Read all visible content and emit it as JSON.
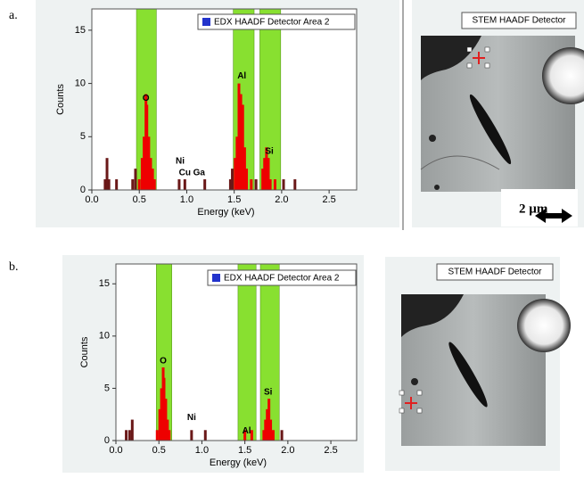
{
  "chart_data": [
    {
      "type": "bar",
      "panel_label": "a.",
      "xlabel": "Energy (keV)",
      "ylabel": "Counts",
      "xlim": [
        0,
        2.79
      ],
      "ylim": [
        0,
        17
      ],
      "xticks": [
        {
          "value": 0,
          "label": "0.0"
        },
        0.5,
        {
          "value": 1,
          "label": "1.0"
        },
        1.5,
        {
          "value": 2,
          "label": "2.0"
        },
        2.5
      ],
      "yticks": [
        0,
        5,
        10,
        15
      ],
      "bands": [
        [
          0.47,
          0.68
        ],
        [
          1.49,
          1.71
        ],
        [
          1.77,
          1.99
        ]
      ],
      "band_color": "#88e030",
      "bar_colors": {
        "in_band": "#ee0000",
        "out_band": "#6a1818"
      },
      "series": [
        {
          "name": "EDX HAADF Detector Area 2",
          "color": "#2233cc",
          "x": [
            0.14,
            0.16,
            0.18,
            0.26,
            0.43,
            0.46,
            0.5,
            0.53,
            0.55,
            0.57,
            0.58,
            0.6,
            0.62,
            0.64,
            0.66,
            0.92,
            0.98,
            1.19,
            1.46,
            1.48,
            1.51,
            1.53,
            1.55,
            1.57,
            1.59,
            1.61,
            1.63,
            1.68,
            1.73,
            1.8,
            1.82,
            1.84,
            1.86,
            1.88,
            1.93,
            2.02,
            2.14
          ],
          "values": [
            1,
            3,
            1,
            1,
            1,
            2,
            1,
            3,
            5,
            9,
            8,
            5,
            3,
            2,
            1,
            1,
            1,
            1,
            1,
            2,
            3,
            5,
            10,
            9,
            8,
            4,
            2,
            1,
            1,
            2,
            3,
            4,
            3,
            1,
            1,
            1,
            1
          ]
        }
      ],
      "annotations": [
        {
          "text": "O",
          "x": 0.57,
          "y": 8.6
        },
        {
          "text": "Al",
          "x": 1.58,
          "y": 10.7
        },
        {
          "text": "Ni",
          "x": 0.93,
          "y": 2.7
        },
        {
          "text": "Cu",
          "x": 0.98,
          "y": 1.6
        },
        {
          "text": "Ga",
          "x": 1.13,
          "y": 1.6
        },
        {
          "text": "Si",
          "x": 1.87,
          "y": 3.6
        }
      ]
    },
    {
      "type": "bar",
      "panel_label": "b.",
      "xlabel": "Energy (keV)",
      "ylabel": "Counts",
      "xlim": [
        0,
        2.8
      ],
      "ylim": [
        0,
        16.9
      ],
      "xticks": [
        {
          "value": 0,
          "label": "0.0"
        },
        0.5,
        {
          "value": 1,
          "label": "1.0"
        },
        1.5,
        {
          "value": 2,
          "label": "2.0"
        },
        2.5
      ],
      "yticks": [
        0,
        5,
        10,
        15
      ],
      "bands": [
        [
          0.47,
          0.65
        ],
        [
          1.42,
          1.63
        ],
        [
          1.68,
          1.9
        ]
      ],
      "band_color": "#88e030",
      "bar_colors": {
        "in_band": "#ee0000",
        "out_band": "#6a1818"
      },
      "series": [
        {
          "name": "EDX HAADF Detector Area 2",
          "color": "#2233cc",
          "x": [
            0.12,
            0.16,
            0.19,
            0.48,
            0.51,
            0.53,
            0.55,
            0.56,
            0.58,
            0.6,
            0.62,
            0.88,
            1.04,
            1.5,
            1.58,
            1.72,
            1.74,
            1.76,
            1.78,
            1.8,
            1.83,
            1.93
          ],
          "values": [
            1,
            1,
            2,
            1,
            3,
            5,
            7,
            6,
            4,
            2,
            1,
            1,
            1,
            1,
            1,
            1,
            2,
            3,
            4,
            2,
            1,
            1
          ]
        }
      ],
      "annotations": [
        {
          "text": "O",
          "x": 0.55,
          "y": 7.6
        },
        {
          "text": "Ni",
          "x": 0.88,
          "y": 2.2
        },
        {
          "text": "Al",
          "x": 1.52,
          "y": 0.9
        },
        {
          "text": "Si",
          "x": 1.77,
          "y": 4.6
        }
      ]
    }
  ],
  "images": [
    {
      "title": "STEM HAADF Detector",
      "scale_bar": "2 µm"
    },
    {
      "title": "STEM HAADF Detector"
    }
  ]
}
